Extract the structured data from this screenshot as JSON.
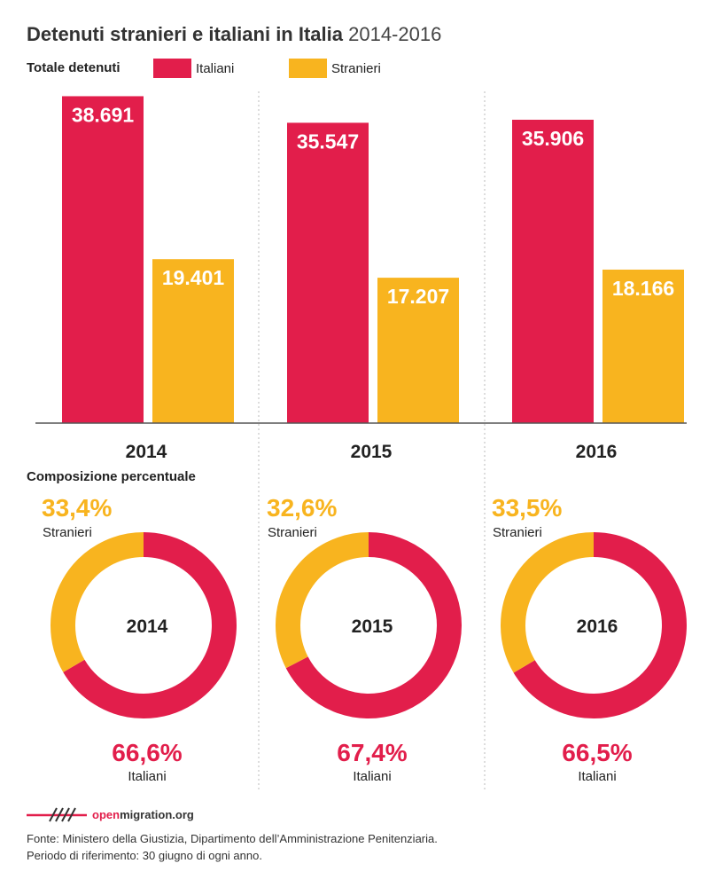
{
  "header": {
    "title": "Detenuti stranieri e italiani in Italia",
    "subtitle": "2014-2016"
  },
  "legend": {
    "label": "Totale detenuti",
    "italiani": "Italiani",
    "stranieri": "Stranieri"
  },
  "colors": {
    "italiani": "#e21e4b",
    "stranieri": "#f8b41f",
    "axis": "#555555",
    "divider": "#bbbbbb"
  },
  "composition": {
    "label": "Composizione percentuale"
  },
  "footer": {
    "brand_accent": "open",
    "brand_rest": "migration.org",
    "source_line1": "Fonte: Ministero della Giustizia, Dipartimento dell’Amministrazione Penitenziaria.",
    "source_line2": "Periodo di riferimento: 30 giugno di ogni anno."
  },
  "chart_data": [
    {
      "type": "bar",
      "title": "Totale detenuti",
      "categories": [
        "2014",
        "2015",
        "2016"
      ],
      "series": [
        {
          "name": "Italiani",
          "values": [
            38691,
            35547,
            35906
          ],
          "labels": [
            "38.691",
            "35.547",
            "35.906"
          ]
        },
        {
          "name": "Stranieri",
          "values": [
            19401,
            17207,
            18166
          ],
          "labels": [
            "19.401",
            "17.207",
            "18.166"
          ]
        }
      ],
      "ylim": [
        0,
        40000
      ]
    },
    {
      "type": "pie",
      "title": "Composizione percentuale",
      "charts": [
        {
          "center": "2014",
          "slices": [
            {
              "name": "Stranieri",
              "value": 33.4,
              "label": "33,4%"
            },
            {
              "name": "Italiani",
              "value": 66.6,
              "label": "66,6%"
            }
          ]
        },
        {
          "center": "2015",
          "slices": [
            {
              "name": "Stranieri",
              "value": 32.6,
              "label": "32,6%"
            },
            {
              "name": "Italiani",
              "value": 67.4,
              "label": "67,4%"
            }
          ]
        },
        {
          "center": "2016",
          "slices": [
            {
              "name": "Stranieri",
              "value": 33.5,
              "label": "33,5%"
            },
            {
              "name": "Italiani",
              "value": 66.5,
              "label": "66,5%"
            }
          ]
        }
      ]
    }
  ]
}
